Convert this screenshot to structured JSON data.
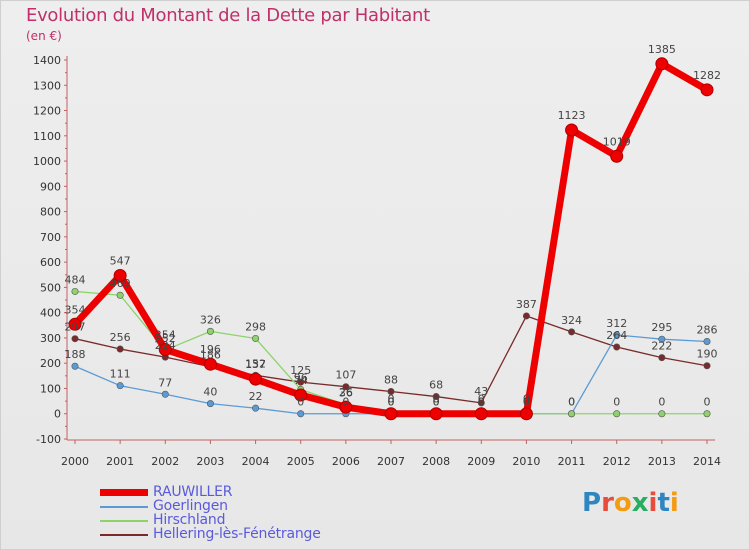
{
  "title": "Evolution du Montant de la Dette par Habitant",
  "unit_label": "(en €)",
  "logo": {
    "text": "Proxiti",
    "letters": [
      "P",
      "r",
      "o",
      "x",
      "i",
      "t",
      "i"
    ],
    "colors": [
      "#2e86c1",
      "#e74c3c",
      "#f39c12",
      "#27ae60",
      "#e74c3c",
      "#2e86c1",
      "#f39c12"
    ]
  },
  "chart_data": {
    "type": "line",
    "title": "Evolution du Montant de la Dette par Habitant",
    "ylabel": "(en €)",
    "xlabel": "",
    "x": [
      "2000",
      "2001",
      "2002",
      "2003",
      "2004",
      "2005",
      "2006",
      "2007",
      "2008",
      "2009",
      "2010",
      "2011",
      "2012",
      "2013",
      "2014"
    ],
    "ylim": [
      -100,
      1400
    ],
    "yticks": [
      "-100",
      "0",
      "100",
      "200",
      "300",
      "400",
      "500",
      "600",
      "700",
      "800",
      "900",
      "1000",
      "1100",
      "1200",
      "1300",
      "1400"
    ],
    "grid": false,
    "legend_position": "bottom-left",
    "series": [
      {
        "name": "Hellering-lès-Fénétrange",
        "color": "#7a2a2a",
        "values": [
          297,
          256,
          224,
          186,
          152,
          125,
          107,
          88,
          68,
          43,
          387,
          324,
          264,
          222,
          190
        ],
        "labels": [
          "297",
          "256",
          "224",
          "186",
          "152",
          "125",
          "107",
          "88",
          "68",
          "43",
          "387",
          "324",
          "264",
          "222",
          "190"
        ]
      },
      {
        "name": "Goerlingen",
        "color": "#5b9bd5",
        "values": [
          188,
          111,
          77,
          40,
          22,
          0,
          0,
          0,
          0,
          0,
          0,
          0,
          312,
          295,
          286
        ],
        "labels": [
          "188",
          "111",
          "77",
          "40",
          "22",
          "0",
          "0",
          "0",
          "0",
          "0",
          "0",
          "0",
          "312",
          "295",
          "286"
        ]
      },
      {
        "name": "Hirschland",
        "color": "#8ed36a",
        "values": [
          484,
          469,
          252,
          326,
          298,
          96,
          36,
          0,
          0,
          0,
          0,
          0,
          0,
          0,
          0
        ],
        "labels": [
          "484",
          "469",
          "252",
          "326",
          "298",
          "96",
          "36",
          "0",
          "0",
          "0",
          "0",
          "0",
          "0",
          "0",
          "0"
        ]
      },
      {
        "name": "RAUWILLER",
        "color": "#ee0000",
        "values": [
          354,
          547,
          254,
          196,
          137,
          74,
          26,
          0,
          0,
          0,
          0,
          1123,
          1019,
          1385,
          1282
        ],
        "labels": [
          "354",
          "547",
          "254",
          "196",
          "137",
          "74",
          "26",
          "0",
          "0",
          "0",
          "0",
          "1123",
          "1019",
          "1385",
          "1282"
        ]
      }
    ]
  },
  "legend": [
    {
      "label": "RAUWILLER",
      "color": "#ee0000"
    },
    {
      "label": "Goerlingen",
      "color": "#5b9bd5"
    },
    {
      "label": "Hirschland",
      "color": "#8ed36a"
    },
    {
      "label": "Hellering-lès-Fénétrange",
      "color": "#7a2a2a"
    }
  ]
}
